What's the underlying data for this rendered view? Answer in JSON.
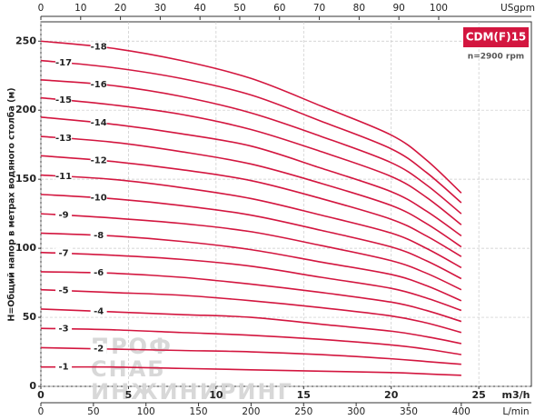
{
  "chart_data": {
    "type": "line",
    "title": "CDM(F)15",
    "subtitle": "n=2900 rpm",
    "y_label": "H=Общий напор в метрах водяного столба (м)",
    "x_label": "m3/h",
    "xlim": [
      0,
      28
    ],
    "xticks": [
      0,
      5,
      10,
      15,
      20,
      25
    ],
    "ylim": [
      0,
      264
    ],
    "yticks": [
      0,
      50,
      100,
      150,
      200,
      250
    ],
    "grid": true,
    "top_axis": {
      "label": "USgpm",
      "lim": [
        0,
        123.3
      ],
      "ticks": [
        0,
        10,
        20,
        30,
        40,
        50,
        60,
        70,
        80,
        90,
        100
      ]
    },
    "bottom_axis2": {
      "label": "L/min",
      "lim": [
        0,
        466.7
      ],
      "ticks": [
        0,
        50,
        100,
        150,
        200,
        250,
        300,
        350,
        400
      ]
    },
    "watermark": [
      "ПРОФ",
      "СНАБ",
      "ИНЖИНИРИНГ"
    ],
    "x": [
      0,
      4,
      8,
      12,
      16,
      20,
      22,
      24
    ],
    "series": [
      {
        "name": "-1",
        "color": "#d3163f",
        "values": [
          14,
          14,
          13,
          12,
          11,
          10,
          9,
          8
        ]
      },
      {
        "name": "-2",
        "color": "#d3163f",
        "values": [
          28,
          27,
          26,
          25,
          23,
          20,
          18,
          16
        ]
      },
      {
        "name": "-3",
        "color": "#d3163f",
        "values": [
          42,
          41,
          39,
          37,
          34,
          30,
          27,
          23
        ]
      },
      {
        "name": "-4",
        "color": "#d3163f",
        "values": [
          56,
          54,
          52,
          50,
          45,
          40,
          36,
          31
        ]
      },
      {
        "name": "-5",
        "color": "#d3163f",
        "values": [
          70,
          68,
          66,
          62,
          57,
          51,
          46,
          39
        ]
      },
      {
        "name": "-6",
        "color": "#d3163f",
        "values": [
          83,
          82,
          79,
          74,
          68,
          61,
          55,
          47
        ]
      },
      {
        "name": "-7",
        "color": "#d3163f",
        "values": [
          97,
          95,
          92,
          87,
          79,
          71,
          64,
          55
        ]
      },
      {
        "name": "-8",
        "color": "#d3163f",
        "values": [
          111,
          109,
          105,
          99,
          90,
          81,
          73,
          62
        ]
      },
      {
        "name": "-9",
        "color": "#d3163f",
        "values": [
          125,
          122,
          118,
          112,
          102,
          91,
          82,
          70
        ]
      },
      {
        "name": "-10",
        "color": "#d3163f",
        "values": [
          139,
          136,
          131,
          124,
          113,
          101,
          91,
          78
        ]
      },
      {
        "name": "-11",
        "color": "#d3163f",
        "values": [
          153,
          150,
          144,
          136,
          124,
          111,
          100,
          86
        ]
      },
      {
        "name": "-12",
        "color": "#d3163f",
        "values": [
          167,
          163,
          157,
          149,
          136,
          121,
          109,
          94
        ]
      },
      {
        "name": "-13",
        "color": "#d3163f",
        "values": [
          181,
          177,
          170,
          161,
          147,
          131,
          118,
          101
        ]
      },
      {
        "name": "-14",
        "color": "#d3163f",
        "values": [
          195,
          190,
          183,
          174,
          158,
          141,
          127,
          109
        ]
      },
      {
        "name": "-15",
        "color": "#d3163f",
        "values": [
          209,
          204,
          197,
          186,
          170,
          152,
          137,
          117
        ]
      },
      {
        "name": "-16",
        "color": "#d3163f",
        "values": [
          222,
          218,
          210,
          198,
          181,
          162,
          146,
          125
        ]
      },
      {
        "name": "-17",
        "color": "#d3163f",
        "values": [
          236,
          231,
          223,
          211,
          192,
          172,
          155,
          133
        ]
      },
      {
        "name": "-18",
        "color": "#d3163f",
        "values": [
          250,
          245,
          236,
          223,
          203,
          182,
          164,
          140
        ]
      }
    ]
  }
}
